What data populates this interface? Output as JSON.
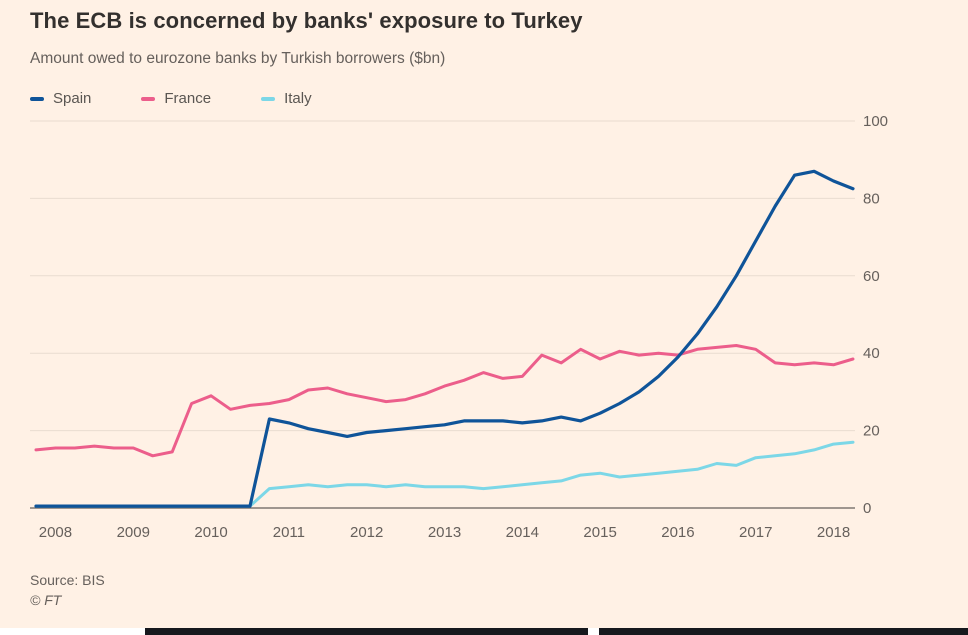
{
  "title": "The ECB is concerned by banks' exposure to Turkey",
  "subtitle": "Amount owed to eurozone banks by Turkish borrowers ($bn)",
  "source": "Source: BIS",
  "credit": "© FT",
  "colors": {
    "background": "#FFF1E5",
    "title_text": "#33302e",
    "muted_text": "#66605c",
    "grid": "#e9dcd0",
    "axis": "#66605c",
    "spain": "#0f5499",
    "france": "#ec5e8b",
    "italy": "#7cd7e7"
  },
  "chart_data": {
    "type": "line",
    "title": "The ECB is concerned by banks' exposure to Turkey",
    "subtitle": "Amount owed to eurozone banks by Turkish borrowers ($bn)",
    "xlabel": "",
    "ylabel": "",
    "ylim": [
      0,
      100
    ],
    "yticks": [
      0,
      20,
      40,
      60,
      80,
      100
    ],
    "xticks": [
      2008,
      2009,
      2010,
      2011,
      2012,
      2013,
      2014,
      2015,
      2016,
      2017,
      2018
    ],
    "grid": "horizontal",
    "legend_position": "top-left",
    "x": [
      2007.75,
      2008,
      2008.25,
      2008.5,
      2008.75,
      2009,
      2009.25,
      2009.5,
      2009.75,
      2010,
      2010.25,
      2010.5,
      2010.75,
      2011,
      2011.25,
      2011.5,
      2011.75,
      2012,
      2012.25,
      2012.5,
      2012.75,
      2013,
      2013.25,
      2013.5,
      2013.75,
      2014,
      2014.25,
      2014.5,
      2014.75,
      2015,
      2015.25,
      2015.5,
      2015.75,
      2016,
      2016.25,
      2016.5,
      2016.75,
      2017,
      2017.25,
      2017.5,
      2017.75,
      2018,
      2018.25
    ],
    "series": [
      {
        "name": "Spain",
        "color": "#0f5499",
        "stroke_width": 3.2,
        "values": [
          0.5,
          0.5,
          0.5,
          0.5,
          0.5,
          0.5,
          0.5,
          0.5,
          0.5,
          0.5,
          0.5,
          0.5,
          23,
          22,
          20.5,
          19.5,
          18.5,
          19.5,
          20,
          20.5,
          21,
          21.5,
          22.5,
          22.5,
          22.5,
          22,
          22.5,
          23.5,
          22.5,
          24.5,
          27,
          30,
          34,
          39,
          45,
          52,
          60,
          69,
          78,
          86,
          87,
          84.5,
          82.5
        ]
      },
      {
        "name": "France",
        "color": "#ec5e8b",
        "stroke_width": 3,
        "values": [
          15,
          15.5,
          15.5,
          16,
          15.5,
          15.5,
          13.5,
          14.5,
          27,
          29,
          25.5,
          26.5,
          27,
          28,
          30.5,
          31,
          29.5,
          28.5,
          27.5,
          28,
          29.5,
          31.5,
          33,
          35,
          33.5,
          34,
          39.5,
          37.5,
          41,
          38.5,
          40.5,
          39.5,
          40,
          39.5,
          41,
          41.5,
          42,
          41,
          37.5,
          37,
          37.5,
          37,
          38.5
        ]
      },
      {
        "name": "Italy",
        "color": "#7cd7e7",
        "stroke_width": 3,
        "values": [
          0.5,
          0.5,
          0.5,
          0.5,
          0.5,
          0.5,
          0.5,
          0.5,
          0.5,
          0.5,
          0.5,
          0.5,
          5,
          5.5,
          6,
          5.5,
          6,
          6,
          5.5,
          6,
          5.5,
          5.5,
          5.5,
          5,
          5.5,
          6,
          6.5,
          7,
          8.5,
          9,
          8,
          8.5,
          9,
          9.5,
          10,
          11.5,
          11,
          13,
          13.5,
          14,
          15,
          16.5,
          17
        ]
      }
    ]
  }
}
